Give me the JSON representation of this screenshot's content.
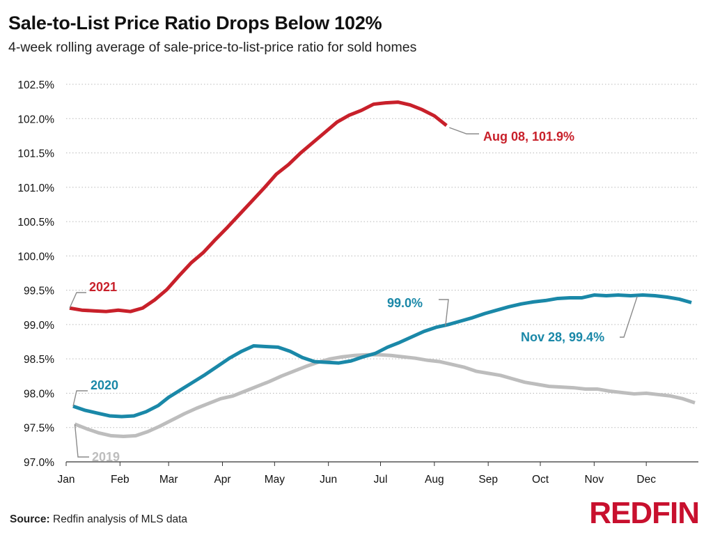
{
  "title": "Sale-to-List Price Ratio Drops Below 102%",
  "subtitle": "4-week rolling average of sale-price-to-list-price ratio for sold homes",
  "source_label": "Source:",
  "source_text": "Redfin analysis of MLS data",
  "brand": "REDFIN",
  "colors": {
    "2021": "#c8202a",
    "2020": "#1a88a8",
    "2019": "#bdbdbd"
  },
  "chart_data": {
    "type": "line",
    "xlabel": "",
    "ylabel": "",
    "x_ticks": [
      "Jan",
      "Feb",
      "Mar",
      "Apr",
      "May",
      "Jun",
      "Jul",
      "Aug",
      "Sep",
      "Oct",
      "Nov",
      "Dec"
    ],
    "y_ticks": [
      "97.0%",
      "97.5%",
      "98.0%",
      "98.5%",
      "99.0%",
      "99.5%",
      "100.0%",
      "100.5%",
      "101.0%",
      "101.5%",
      "102.0%",
      "102.5%"
    ],
    "ylim": [
      97.0,
      102.5
    ],
    "grid": true,
    "series": [
      {
        "name": "2021",
        "x": [
          "Jan 03",
          "Jan 10",
          "Jan 17",
          "Jan 24",
          "Jan 31",
          "Feb 07",
          "Feb 14",
          "Feb 21",
          "Feb 28",
          "Mar 07",
          "Mar 14",
          "Mar 21",
          "Mar 28",
          "Apr 04",
          "Apr 11",
          "Apr 18",
          "Apr 25",
          "May 02",
          "May 09",
          "May 16",
          "May 23",
          "May 30",
          "Jun 06",
          "Jun 13",
          "Jun 20",
          "Jun 27",
          "Jul 04",
          "Jul 11",
          "Jul 18",
          "Jul 25",
          "Aug 01",
          "Aug 08"
        ],
        "y": [
          99.24,
          99.21,
          99.2,
          99.19,
          99.21,
          99.19,
          99.24,
          99.36,
          99.51,
          99.71,
          99.9,
          100.05,
          100.24,
          100.42,
          100.61,
          100.8,
          100.99,
          101.19,
          101.33,
          101.5,
          101.65,
          101.8,
          101.95,
          102.05,
          102.12,
          102.21,
          102.23,
          102.24,
          102.2,
          102.13,
          102.04,
          101.9
        ]
      },
      {
        "name": "2020",
        "x": [
          "Jan 05",
          "Jan 12",
          "Jan 19",
          "Jan 26",
          "Feb 02",
          "Feb 09",
          "Feb 16",
          "Feb 23",
          "Mar 01",
          "Mar 08",
          "Mar 15",
          "Mar 22",
          "Mar 29",
          "Apr 05",
          "Apr 12",
          "Apr 19",
          "Apr 26",
          "May 03",
          "May 10",
          "May 17",
          "May 24",
          "May 31",
          "Jun 07",
          "Jun 14",
          "Jun 21",
          "Jun 28",
          "Jul 05",
          "Jul 12",
          "Jul 19",
          "Jul 26",
          "Aug 02",
          "Aug 09",
          "Aug 16",
          "Aug 23",
          "Aug 30",
          "Sep 06",
          "Sep 13",
          "Sep 20",
          "Sep 27",
          "Oct 04",
          "Oct 11",
          "Oct 18",
          "Oct 25",
          "Nov 01",
          "Nov 08",
          "Nov 15",
          "Nov 22",
          "Nov 29",
          "Dec 06",
          "Dec 13",
          "Dec 20",
          "Dec 27"
        ],
        "y": [
          97.81,
          97.75,
          97.71,
          97.67,
          97.66,
          97.67,
          97.73,
          97.82,
          97.94,
          98.05,
          98.16,
          98.27,
          98.39,
          98.51,
          98.61,
          98.69,
          98.68,
          98.67,
          98.61,
          98.52,
          98.46,
          98.45,
          98.44,
          98.47,
          98.53,
          98.58,
          98.67,
          98.74,
          98.82,
          98.9,
          98.96,
          99.0,
          99.05,
          99.1,
          99.16,
          99.21,
          99.26,
          99.3,
          99.33,
          99.35,
          99.38,
          99.39,
          99.39,
          99.43,
          99.42,
          99.43,
          99.42,
          99.43,
          99.42,
          99.4,
          99.37,
          99.32
        ]
      },
      {
        "name": "2019",
        "x": [
          "Jan 06",
          "Jan 13",
          "Jan 20",
          "Jan 27",
          "Feb 03",
          "Feb 10",
          "Feb 17",
          "Feb 24",
          "Mar 03",
          "Mar 10",
          "Mar 17",
          "Mar 24",
          "Mar 31",
          "Apr 07",
          "Apr 14",
          "Apr 21",
          "Apr 28",
          "May 05",
          "May 12",
          "May 19",
          "May 26",
          "Jun 02",
          "Jun 09",
          "Jun 16",
          "Jun 23",
          "Jun 30",
          "Jul 07",
          "Jul 14",
          "Jul 21",
          "Jul 28",
          "Aug 04",
          "Aug 11",
          "Aug 18",
          "Aug 25",
          "Sep 01",
          "Sep 08",
          "Sep 15",
          "Sep 22",
          "Sep 29",
          "Oct 06",
          "Oct 13",
          "Oct 20",
          "Oct 27",
          "Nov 03",
          "Nov 10",
          "Nov 17",
          "Nov 24",
          "Dec 01",
          "Dec 08",
          "Dec 15",
          "Dec 22",
          "Dec 29"
        ],
        "y": [
          97.55,
          97.48,
          97.42,
          97.38,
          97.37,
          97.38,
          97.44,
          97.52,
          97.61,
          97.7,
          97.78,
          97.85,
          97.92,
          97.96,
          98.03,
          98.1,
          98.17,
          98.25,
          98.32,
          98.39,
          98.45,
          98.5,
          98.53,
          98.55,
          98.56,
          98.56,
          98.55,
          98.53,
          98.51,
          98.48,
          98.46,
          98.42,
          98.38,
          98.32,
          98.29,
          98.26,
          98.21,
          98.16,
          98.13,
          98.1,
          98.09,
          98.08,
          98.06,
          98.06,
          98.03,
          98.01,
          97.99,
          98.0,
          97.98,
          97.96,
          97.92,
          97.86
        ]
      }
    ],
    "annotations": [
      {
        "text": "2021",
        "series": "2021"
      },
      {
        "text": "2020",
        "series": "2020"
      },
      {
        "text": "2019",
        "series": "2019"
      },
      {
        "text": "Aug 08, 101.9%",
        "series": "2021"
      },
      {
        "text": "99.0%",
        "series": "2020"
      },
      {
        "text": "Nov 28, 99.4%",
        "series": "2020"
      }
    ]
  }
}
